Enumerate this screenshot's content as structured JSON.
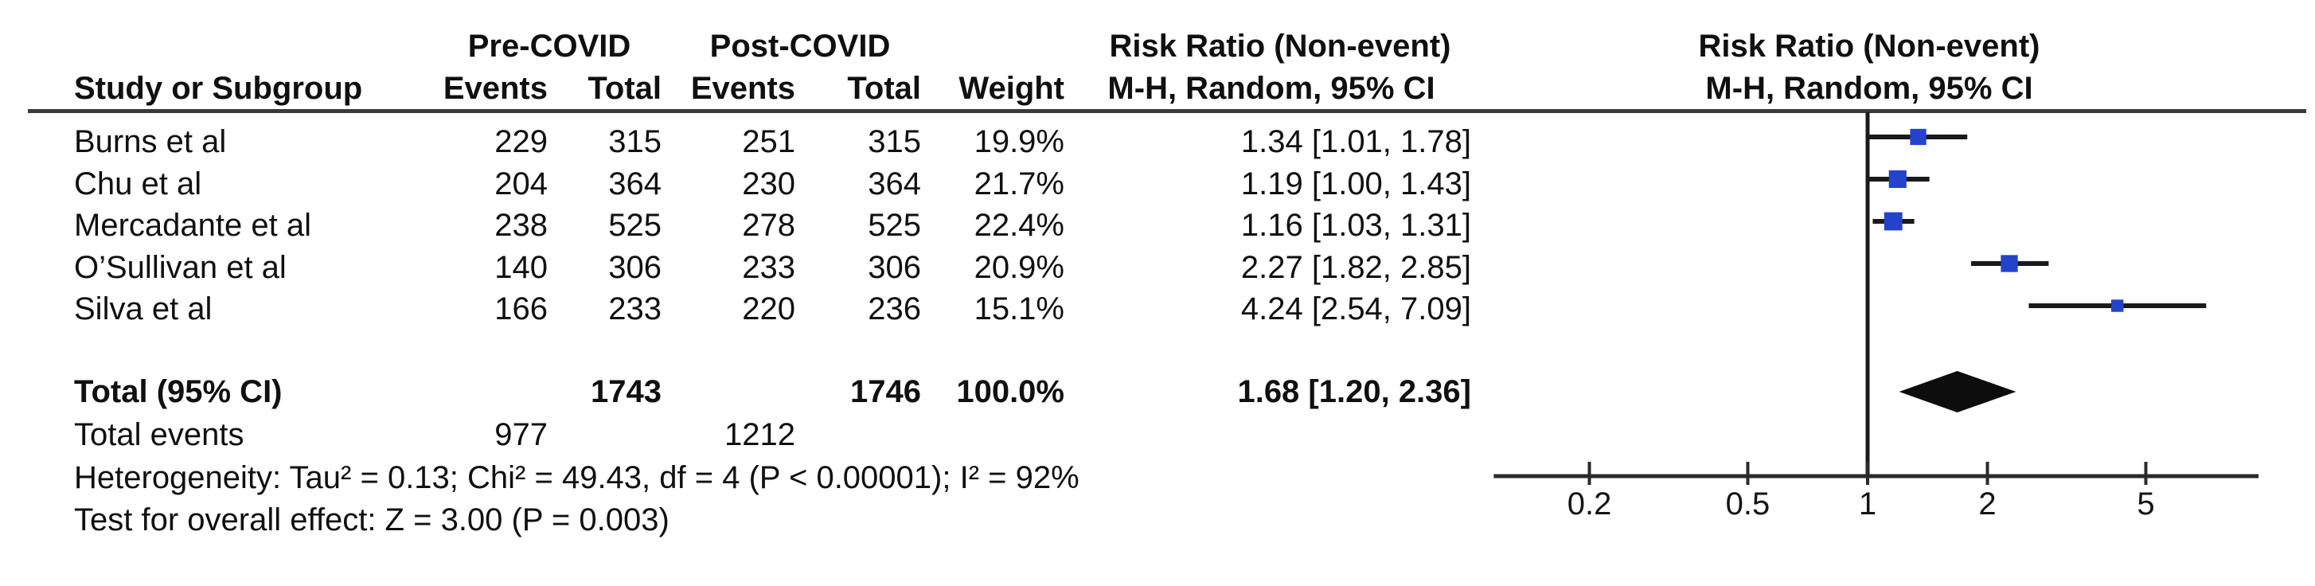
{
  "figure": {
    "group_headers": {
      "pre": "Pre-COVID",
      "post": "Post-COVID"
    },
    "rr_column_header_line1": "Risk Ratio (Non-event)",
    "rr_column_header_line2": "M-H, Random, 95% CI",
    "plot_header_line1": "Risk Ratio (Non-event)",
    "plot_header_line2": "M-H, Random, 95% CI",
    "col_headers": {
      "study": "Study or Subgroup",
      "pre_events": "Events",
      "pre_total": "Total",
      "post_events": "Events",
      "post_total": "Total",
      "weight": "Weight"
    },
    "rows": [
      {
        "study": "Burns et al",
        "pre_events": "229",
        "pre_total": "315",
        "post_events": "251",
        "post_total": "315",
        "weight": "19.9%",
        "rr_ci": "1.34 [1.01, 1.78]"
      },
      {
        "study": "Chu et al",
        "pre_events": "204",
        "pre_total": "364",
        "post_events": "230",
        "post_total": "364",
        "weight": "21.7%",
        "rr_ci": "1.19 [1.00, 1.43]"
      },
      {
        "study": "Mercadante et al",
        "pre_events": "238",
        "pre_total": "525",
        "post_events": "278",
        "post_total": "525",
        "weight": "22.4%",
        "rr_ci": "1.16 [1.03, 1.31]"
      },
      {
        "study": "O’Sullivan et al",
        "pre_events": "140",
        "pre_total": "306",
        "post_events": "233",
        "post_total": "306",
        "weight": "20.9%",
        "rr_ci": "2.27 [1.82, 2.85]"
      },
      {
        "study": "Silva et al",
        "pre_events": "166",
        "pre_total": "233",
        "post_events": "220",
        "post_total": "236",
        "weight": "15.1%",
        "rr_ci": "4.24 [2.54, 7.09]"
      }
    ],
    "total_row": {
      "label": "Total (95% CI)",
      "pre_total": "1743",
      "post_total": "1746",
      "weight": "100.0%",
      "rr_ci": "1.68 [1.20, 2.36]"
    },
    "total_events_row": {
      "label": "Total events",
      "pre_events": "977",
      "post_events": "1212"
    },
    "heterogeneity": "Heterogeneity: Tau² = 0.13; Chi² = 49.43, df = 4 (P < 0.00001); I² = 92%",
    "overall_effect": "Test for overall effect: Z = 3.00 (P = 0.003)"
  },
  "chart_data": {
    "type": "forest",
    "x_scale": "log10",
    "axis_ticks": [
      "0.2",
      "0.5",
      "1",
      "2",
      "5"
    ],
    "x_range": [
      0.115,
      9.6
    ],
    "null_line_value": 1,
    "studies": [
      {
        "name": "Burns et al",
        "rr": 1.34,
        "ci_low": 1.01,
        "ci_high": 1.78,
        "weight_pct": 19.9
      },
      {
        "name": "Chu et al",
        "rr": 1.19,
        "ci_low": 1.0,
        "ci_high": 1.43,
        "weight_pct": 21.7
      },
      {
        "name": "Mercadante et al",
        "rr": 1.16,
        "ci_low": 1.03,
        "ci_high": 1.31,
        "weight_pct": 22.4
      },
      {
        "name": "O’Sullivan et al",
        "rr": 2.27,
        "ci_low": 1.82,
        "ci_high": 2.85,
        "weight_pct": 20.9
      },
      {
        "name": "Silva et al",
        "rr": 4.24,
        "ci_low": 2.54,
        "ci_high": 7.09,
        "weight_pct": 15.1
      }
    ],
    "summary": {
      "label": "Total (95% CI)",
      "rr": 1.68,
      "ci_low": 1.2,
      "ci_high": 2.36
    },
    "colors": {
      "marker": "#2343cc",
      "ci_line": "#1a1a1a",
      "diamond": "#0d0d0d",
      "axis": "#2a2a2a"
    }
  }
}
